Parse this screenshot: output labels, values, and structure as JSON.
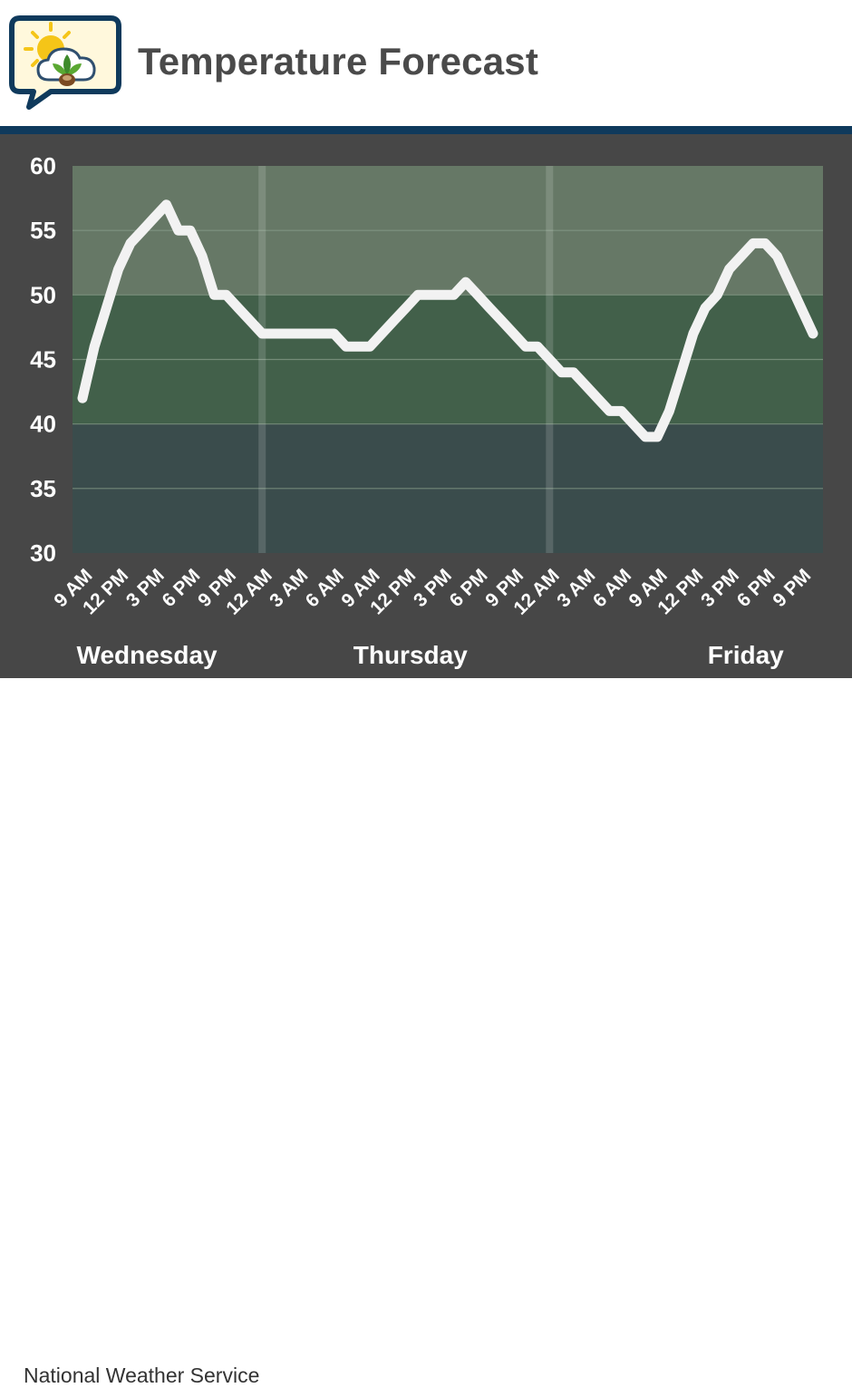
{
  "header": {
    "title": "Temperature Forecast"
  },
  "footer": {
    "source": "National Weather Service"
  },
  "colors": {
    "header_bar": "#0f3a5c",
    "panel_background": "#474747",
    "band_above_50": "#667866",
    "band_40_to_50": "#42604a",
    "band_below_40": "#3a4c4c",
    "line": "#f2f2f2"
  },
  "icons": [
    "speech-bubble-logo-icon",
    "sun-icon",
    "cloud-icon",
    "leaf-icon"
  ],
  "chart_data": {
    "type": "line",
    "title": "Temperature Forecast",
    "xlabel": "",
    "ylabel": "",
    "ylim": [
      30,
      60
    ],
    "yticks": [
      30,
      35,
      40,
      45,
      50,
      55,
      60
    ],
    "grid": true,
    "legend": "none",
    "x_tick_labels": [
      "9 AM",
      "12 PM",
      "3 PM",
      "6 PM",
      "9 PM",
      "12 AM",
      "3 AM",
      "6 AM",
      "9 AM",
      "12 PM",
      "3 PM",
      "6 PM",
      "9 PM",
      "12 AM",
      "3 AM",
      "6 AM",
      "9 AM",
      "12 PM",
      "3 PM",
      "6 PM",
      "9 PM"
    ],
    "day_labels": [
      {
        "label": "Wednesday",
        "center_hour": 5
      },
      {
        "label": "Thursday",
        "center_hour": 27
      },
      {
        "label": "Friday",
        "center_hour": 55
      }
    ],
    "day_dividers_hour": [
      15,
      39
    ],
    "bands": [
      {
        "from": 50,
        "to": 60,
        "color": "#667866"
      },
      {
        "from": 40,
        "to": 50,
        "color": "#42604a"
      },
      {
        "from": 30,
        "to": 40,
        "color": "#3a4c4c"
      }
    ],
    "series": [
      {
        "values": [
          [
            0,
            42
          ],
          [
            1,
            46
          ],
          [
            2,
            49
          ],
          [
            3,
            52
          ],
          [
            4,
            54
          ],
          [
            5,
            55
          ],
          [
            6,
            56
          ],
          [
            7,
            57
          ],
          [
            8,
            55
          ],
          [
            9,
            55
          ],
          [
            10,
            53
          ],
          [
            11,
            50
          ],
          [
            12,
            50
          ],
          [
            13,
            49
          ],
          [
            14,
            48
          ],
          [
            15,
            47
          ],
          [
            16,
            47
          ],
          [
            17,
            47
          ],
          [
            18,
            47
          ],
          [
            19,
            47
          ],
          [
            20,
            47
          ],
          [
            21,
            47
          ],
          [
            22,
            46
          ],
          [
            23,
            46
          ],
          [
            24,
            46
          ],
          [
            25,
            47
          ],
          [
            26,
            48
          ],
          [
            27,
            49
          ],
          [
            28,
            50
          ],
          [
            29,
            50
          ],
          [
            30,
            50
          ],
          [
            31,
            50
          ],
          [
            32,
            51
          ],
          [
            33,
            50
          ],
          [
            34,
            49
          ],
          [
            35,
            48
          ],
          [
            36,
            47
          ],
          [
            37,
            46
          ],
          [
            38,
            46
          ],
          [
            39,
            45
          ],
          [
            40,
            44
          ],
          [
            41,
            44
          ],
          [
            42,
            43
          ],
          [
            43,
            42
          ],
          [
            44,
            41
          ],
          [
            45,
            41
          ],
          [
            46,
            40
          ],
          [
            47,
            39
          ],
          [
            48,
            39
          ],
          [
            49,
            41
          ],
          [
            50,
            44
          ],
          [
            51,
            47
          ],
          [
            52,
            49
          ],
          [
            53,
            50
          ],
          [
            54,
            52
          ],
          [
            55,
            53
          ],
          [
            56,
            54
          ],
          [
            57,
            54
          ],
          [
            58,
            53
          ],
          [
            59,
            51
          ],
          [
            60,
            49
          ],
          [
            61,
            47
          ]
        ]
      }
    ]
  }
}
